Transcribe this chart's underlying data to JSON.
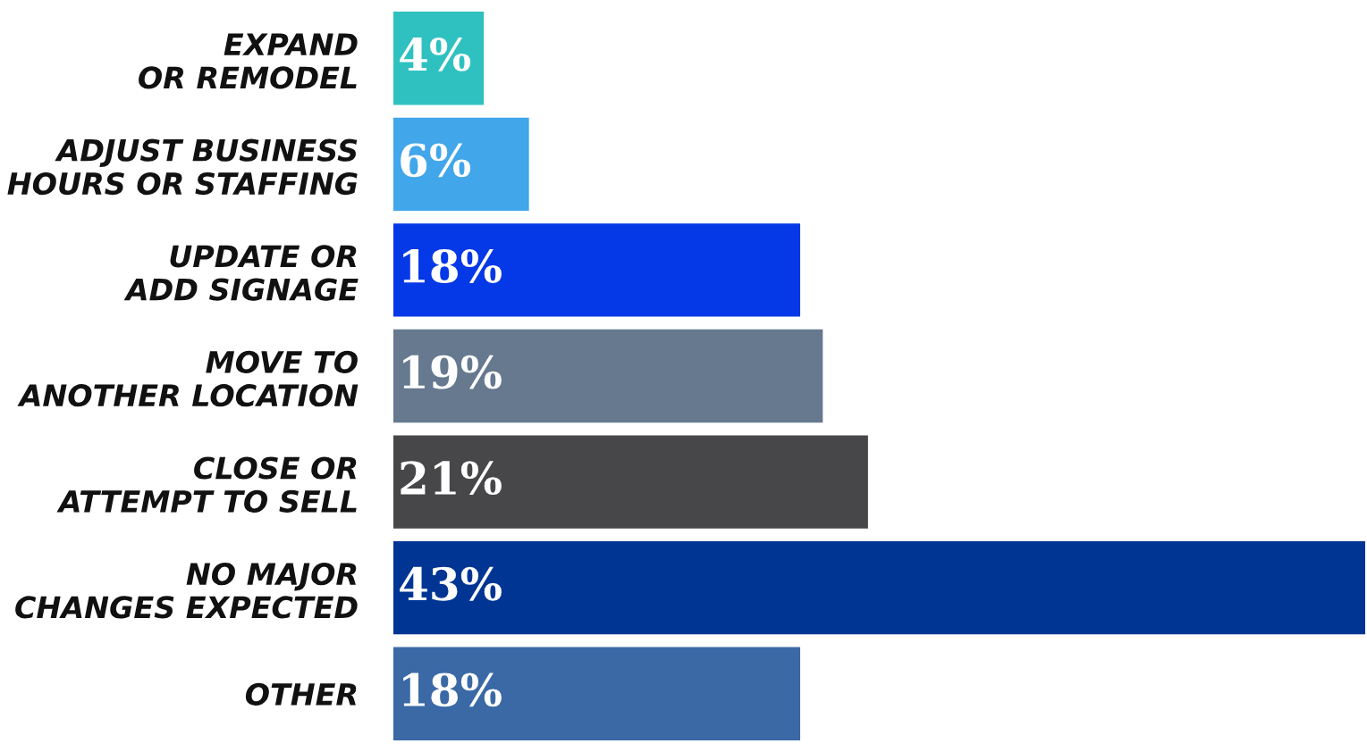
{
  "chart_data": {
    "type": "bar",
    "orientation": "horizontal",
    "data_labels": true,
    "grid": false,
    "legend": false,
    "tick_labels": "y",
    "categories": [
      "EXPAND\nOR REMODEL",
      "ADJUST BUSINESS\nHOURS OR STAFFING",
      "UPDATE OR\nADD SIGNAGE",
      "MOVE TO\nANOTHER LOCATION",
      "CLOSE OR\nATTEMPT TO SELL",
      "NO MAJOR\nCHANGES EXPECTED",
      "OTHER"
    ],
    "values": [
      4,
      6,
      18,
      19,
      21,
      43,
      18
    ],
    "colors": [
      "#2ec1c0",
      "#41a6ea",
      "#0538e6",
      "#66798f",
      "#474749",
      "#003594",
      "#3a69a6"
    ],
    "value_labels": [
      "4%",
      "6%",
      "18%",
      "19%",
      "21%",
      "43%",
      "18%"
    ]
  }
}
